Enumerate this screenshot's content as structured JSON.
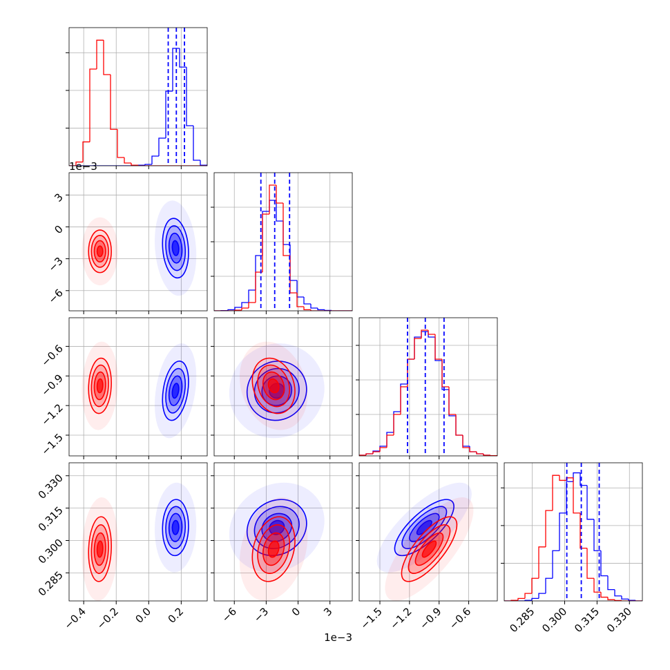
{
  "chart_data": {
    "type": "corner",
    "grid": true,
    "levels": [
      0.5,
      1,
      1.5,
      2
    ],
    "quantile_color": "#0000ff",
    "quantiles": [
      [
        0.12,
        0.17,
        0.22
      ],
      [
        -3.5,
        -2.2,
        -0.8
      ],
      [
        -1.22,
        -1.04,
        -0.85
      ],
      [
        0.301,
        0.3077,
        0.316
      ]
    ],
    "parameters": [
      {
        "lim": [
          -0.49,
          0.36
        ],
        "ticks": [
          {
            "value": -0.4,
            "label": "−0.4"
          },
          {
            "value": -0.2,
            "label": "−0.2"
          },
          {
            "value": 0.0,
            "label": "0.0"
          },
          0.2
        ],
        "bins": [
          -0.49,
          -0.4475,
          -0.405,
          -0.3625,
          -0.32,
          -0.2775,
          -0.235,
          -0.1925,
          -0.15,
          -0.1075,
          -0.065,
          -0.0225,
          0.02,
          0.0625,
          0.105,
          0.1475,
          0.19,
          0.2325,
          0.275,
          0.3175,
          0.36
        ],
        "hist_ylim": [
          0,
          1100
        ],
        "hist_yticks": [
          300,
          600,
          900
        ]
      },
      {
        "lim": [
          -7.9,
          5.1
        ],
        "offset_label": "1e−3",
        "ticks": [
          {
            "value": -6,
            "label": "−6"
          },
          {
            "value": -3,
            "label": "−3"
          },
          0,
          3
        ],
        "bins": [
          -7.9,
          -7.25,
          -6.6,
          -5.95,
          -5.3,
          -4.65,
          -4,
          -3.35,
          -2.7,
          -2.05,
          -1.4,
          -0.75,
          -0.1,
          0.55,
          1.2,
          1.85,
          2.5,
          3.15,
          3.8,
          4.45,
          5.1
        ],
        "hist_ylim": [
          0,
          1000
        ],
        "hist_yticks": [
          250,
          500,
          750
        ]
      },
      {
        "lim": [
          -1.71,
          -0.31
        ],
        "ticks": [
          {
            "value": -1.5,
            "label": "−1.5"
          },
          {
            "value": -1.2,
            "label": "−1.2"
          },
          {
            "value": -0.9,
            "label": "−0.9"
          },
          {
            "value": -0.6,
            "label": "−0.6"
          }
        ],
        "bins": [
          -1.71,
          -1.64,
          -1.57,
          -1.5,
          -1.43,
          -1.36,
          -1.29,
          -1.22,
          -1.15,
          -1.08,
          -1.01,
          -0.94,
          -0.87,
          -0.8,
          -0.73,
          -0.66,
          -0.59,
          -0.52,
          -0.45,
          -0.38,
          -0.31
        ],
        "hist_ylim": [
          0,
          1000
        ],
        "hist_yticks": [
          300,
          550,
          800
        ]
      },
      {
        "lim": [
          0.272,
          0.336
        ],
        "ticks": [
          0.285,
          {
            "value": 0.3,
            "label": "0.300"
          },
          0.315,
          {
            "value": 0.33,
            "label": "0.330"
          }
        ],
        "bins": [
          0.272,
          0.2752,
          0.2784,
          0.2816,
          0.2848,
          0.288,
          0.2912,
          0.2944,
          0.2976,
          0.3008,
          0.304,
          0.3072,
          0.3104,
          0.3136,
          0.3168,
          0.32,
          0.3232,
          0.3264,
          0.3296,
          0.3328,
          0.336
        ],
        "hist_ylim": [
          0,
          1100
        ],
        "hist_yticks": [
          300,
          600,
          900
        ]
      }
    ],
    "series": [
      {
        "color": "#0000ff",
        "means": [
          0.165,
          -2.0,
          -1.05,
          0.306
        ],
        "sigmas": [
          0.04,
          1.4,
          0.15,
          0.0065
        ],
        "corr": [
          [
            1,
            -0.15,
            0.3,
            0.05
          ],
          [
            -0.15,
            1,
            0.05,
            0.15
          ],
          [
            0.3,
            0.05,
            1,
            0.75
          ],
          [
            0.05,
            0.15,
            0.75,
            1
          ]
        ],
        "counts": [
          [
            0,
            0,
            0,
            0,
            0,
            0,
            0,
            0,
            0,
            0,
            5,
            11,
            77,
            220,
            594,
            935,
            786,
            319,
            44,
            5
          ],
          [
            0,
            2,
            8,
            25,
            60,
            150,
            400,
            720,
            800,
            650,
            480,
            220,
            100,
            50,
            20,
            8,
            3,
            0,
            0,
            0
          ],
          [
            5,
            15,
            35,
            70,
            170,
            320,
            520,
            700,
            860,
            900,
            860,
            690,
            480,
            290,
            150,
            70,
            30,
            15,
            5,
            2
          ],
          [
            0,
            0,
            0,
            5,
            20,
            60,
            180,
            400,
            700,
            950,
            1020,
            920,
            650,
            400,
            200,
            90,
            40,
            15,
            5,
            0
          ]
        ]
      },
      {
        "color": "#ff0000",
        "means": [
          -0.3,
          -2.3,
          -1.0,
          0.296
        ],
        "sigmas": [
          0.035,
          1.0,
          0.14,
          0.0075
        ],
        "corr": [
          [
            1,
            0.0,
            0.1,
            0.1
          ],
          [
            0.0,
            1,
            -0.2,
            0.25
          ],
          [
            0.1,
            -0.2,
            1,
            0.75
          ],
          [
            0.1,
            0.25,
            0.75,
            1
          ]
        ],
        "counts": [
          [
            0,
            30,
            190,
            770,
            1000,
            726,
            290,
            66,
            22,
            5,
            0,
            0,
            0,
            0,
            0,
            0,
            0,
            0,
            0,
            0
          ],
          [
            0,
            0,
            0,
            5,
            20,
            60,
            280,
            700,
            910,
            780,
            400,
            130,
            30,
            8,
            0,
            0,
            0,
            0,
            0,
            0
          ],
          [
            5,
            15,
            30,
            60,
            150,
            300,
            500,
            700,
            850,
            910,
            880,
            700,
            500,
            300,
            150,
            60,
            30,
            15,
            5,
            2
          ],
          [
            0,
            5,
            20,
            60,
            180,
            430,
            720,
            1000,
            960,
            980,
            700,
            420,
            180,
            70,
            30,
            10,
            3,
            0,
            0,
            0
          ]
        ]
      }
    ]
  }
}
